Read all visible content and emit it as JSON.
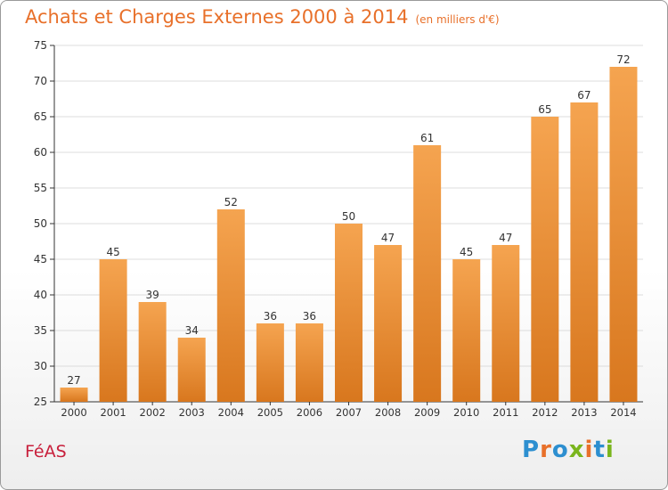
{
  "header": {
    "title": "Achats et Charges Externes 2000 à 2014",
    "unit": "(en milliers d'€)"
  },
  "footer": {
    "commune": "FéAS",
    "brand": "Proxiti",
    "brand_letter_colors": [
      "#2d8fd0",
      "#e8702a",
      "#2d8fd0",
      "#7ab51d",
      "#e8702a",
      "#2d8fd0",
      "#7ab51d"
    ]
  },
  "colors": {
    "bar_light": "#f5a450",
    "bar_dark": "#d8771e",
    "title": "#e8702a",
    "commune": "#c8203c",
    "grid": "#dcdcdc"
  },
  "chart_data": {
    "type": "bar",
    "categories": [
      "2000",
      "2001",
      "2002",
      "2003",
      "2004",
      "2005",
      "2006",
      "2007",
      "2008",
      "2009",
      "2010",
      "2011",
      "2012",
      "2013",
      "2014"
    ],
    "values": [
      27,
      45,
      39,
      34,
      52,
      36,
      36,
      50,
      47,
      61,
      45,
      47,
      65,
      67,
      72
    ],
    "value_labels": [
      "27",
      "45",
      "39",
      "34",
      "52",
      "36",
      "36",
      "50",
      "47",
      "61",
      "45",
      "47",
      "65",
      "67",
      "72"
    ],
    "ylim": [
      25,
      75
    ],
    "yticks": [
      25,
      30,
      35,
      40,
      45,
      50,
      55,
      60,
      65,
      70,
      75
    ],
    "grid": true
  }
}
